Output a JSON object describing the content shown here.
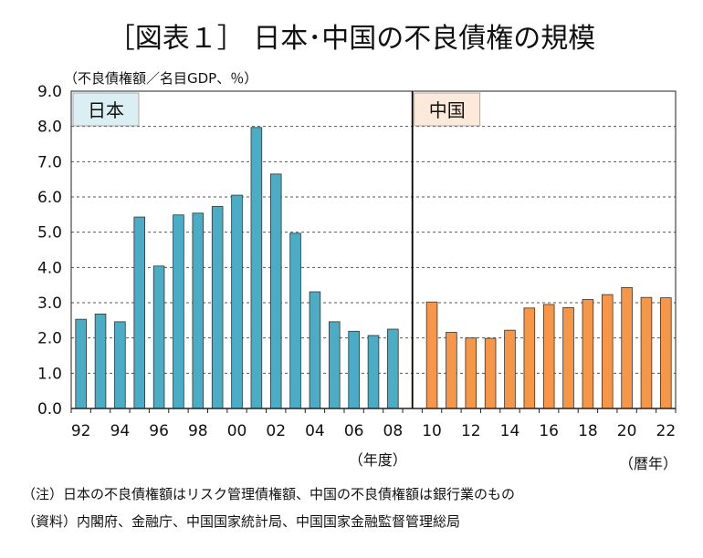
{
  "chart_data": {
    "type": "bar",
    "title": "［図表１］ 日本･中国の不良債権の規模",
    "ylabel": "（不良債権額／名目GDP、％）",
    "ylim": [
      0,
      9
    ],
    "yticks": [
      "9.0",
      "8.0",
      "7.0",
      "6.0",
      "5.0",
      "4.0",
      "3.0",
      "2.0",
      "1.0",
      "0.0"
    ],
    "grid": true,
    "panels": [
      {
        "name": "日本",
        "color": "#4BACC6",
        "x_unit": "（年度）",
        "categories": [
          "92",
          "93",
          "94",
          "95",
          "96",
          "97",
          "98",
          "99",
          "00",
          "01",
          "02",
          "03",
          "04",
          "05",
          "06",
          "07",
          "08"
        ],
        "tick_labels": [
          "92",
          "",
          "94",
          "",
          "96",
          "",
          "98",
          "",
          "00",
          "",
          "02",
          "",
          "04",
          "",
          "06",
          "",
          "08"
        ],
        "values": [
          2.53,
          2.68,
          2.46,
          5.43,
          4.04,
          5.49,
          5.54,
          5.73,
          6.05,
          7.97,
          6.65,
          4.97,
          3.31,
          2.46,
          2.19,
          2.07,
          2.25
        ]
      },
      {
        "name": "中国",
        "color": "#F79646",
        "x_unit": "（暦年）",
        "categories": [
          "10",
          "11",
          "12",
          "13",
          "14",
          "15",
          "16",
          "17",
          "18",
          "19",
          "20",
          "21",
          "22"
        ],
        "tick_labels": [
          "10",
          "",
          "12",
          "",
          "14",
          "",
          "16",
          "",
          "18",
          "",
          "20",
          "",
          "22"
        ],
        "values": [
          3.02,
          2.16,
          2.0,
          1.99,
          2.22,
          2.85,
          2.95,
          2.86,
          3.09,
          3.23,
          3.43,
          3.15,
          3.14
        ]
      }
    ]
  },
  "notes": {
    "note": "（注）日本の不良債権額はリスク管理債権額、中国の不良債権額は銀行業のもの",
    "source": "（資料）内閣府、金融庁、中国国家統計局、中国国家金融監督管理総局"
  }
}
